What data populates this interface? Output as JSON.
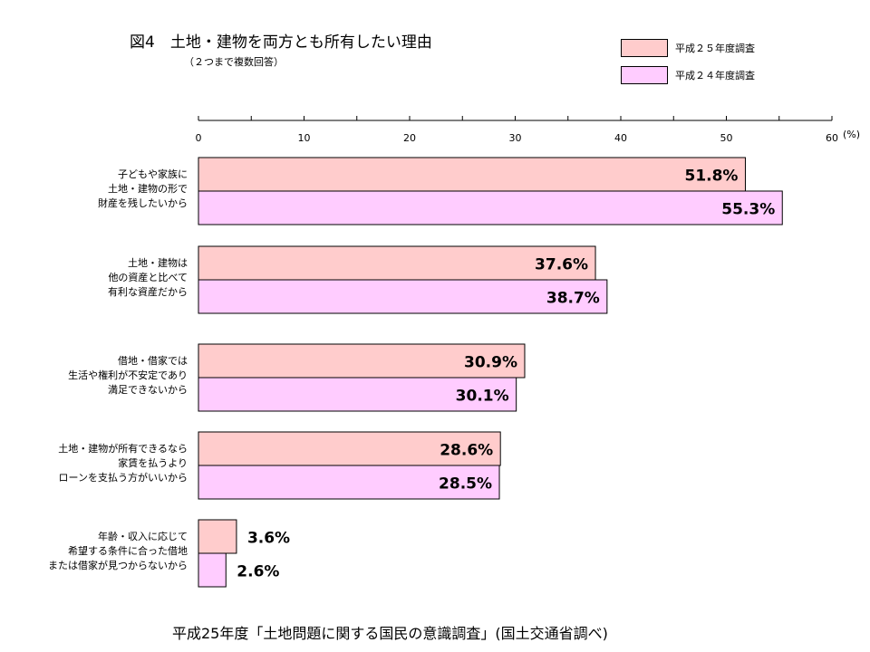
{
  "header": {
    "title": "図4　土地・建物を両方とも所有したい理由",
    "subtitle": "（２つまで複数回答）"
  },
  "footer": "平成25年度「土地問題に関する国民の意識調査」(国土交通省調べ)",
  "chart_data": {
    "type": "bar",
    "orientation": "horizontal",
    "xlim": [
      0,
      60
    ],
    "xticks": [
      0,
      10,
      20,
      30,
      40,
      50,
      60
    ],
    "unit_label": "(%)",
    "grid": false,
    "legend_position": "top-right",
    "categories": [
      [
        "子どもや家族に",
        "土地・建物の形で",
        "財産を残したいから"
      ],
      [
        "土地・建物は",
        "他の資産と比べて",
        "有利な資産だから"
      ],
      [
        "借地・借家では",
        "生活や権利が不安定であり",
        "満足できないから"
      ],
      [
        "土地・建物が所有できるなら",
        "家賃を払うより",
        "ローンを支払う方がいいから"
      ],
      [
        "年齢・収入に応じて",
        "希望する条件に合った借地",
        "または借家が見つからないから"
      ]
    ],
    "series": [
      {
        "name": "平成２５年度調査",
        "color": "#FFCCCC",
        "values": [
          51.8,
          37.6,
          30.9,
          28.6,
          3.6
        ],
        "labels": [
          "51.8%",
          "37.6%",
          "30.9%",
          "28.6%",
          "3.6%"
        ]
      },
      {
        "name": "平成２４年度調査",
        "color": "#FFCCFF",
        "values": [
          55.3,
          38.7,
          30.1,
          28.5,
          2.6
        ],
        "labels": [
          "55.3%",
          "38.7%",
          "30.1%",
          "28.5%",
          "2.6%"
        ]
      }
    ]
  }
}
